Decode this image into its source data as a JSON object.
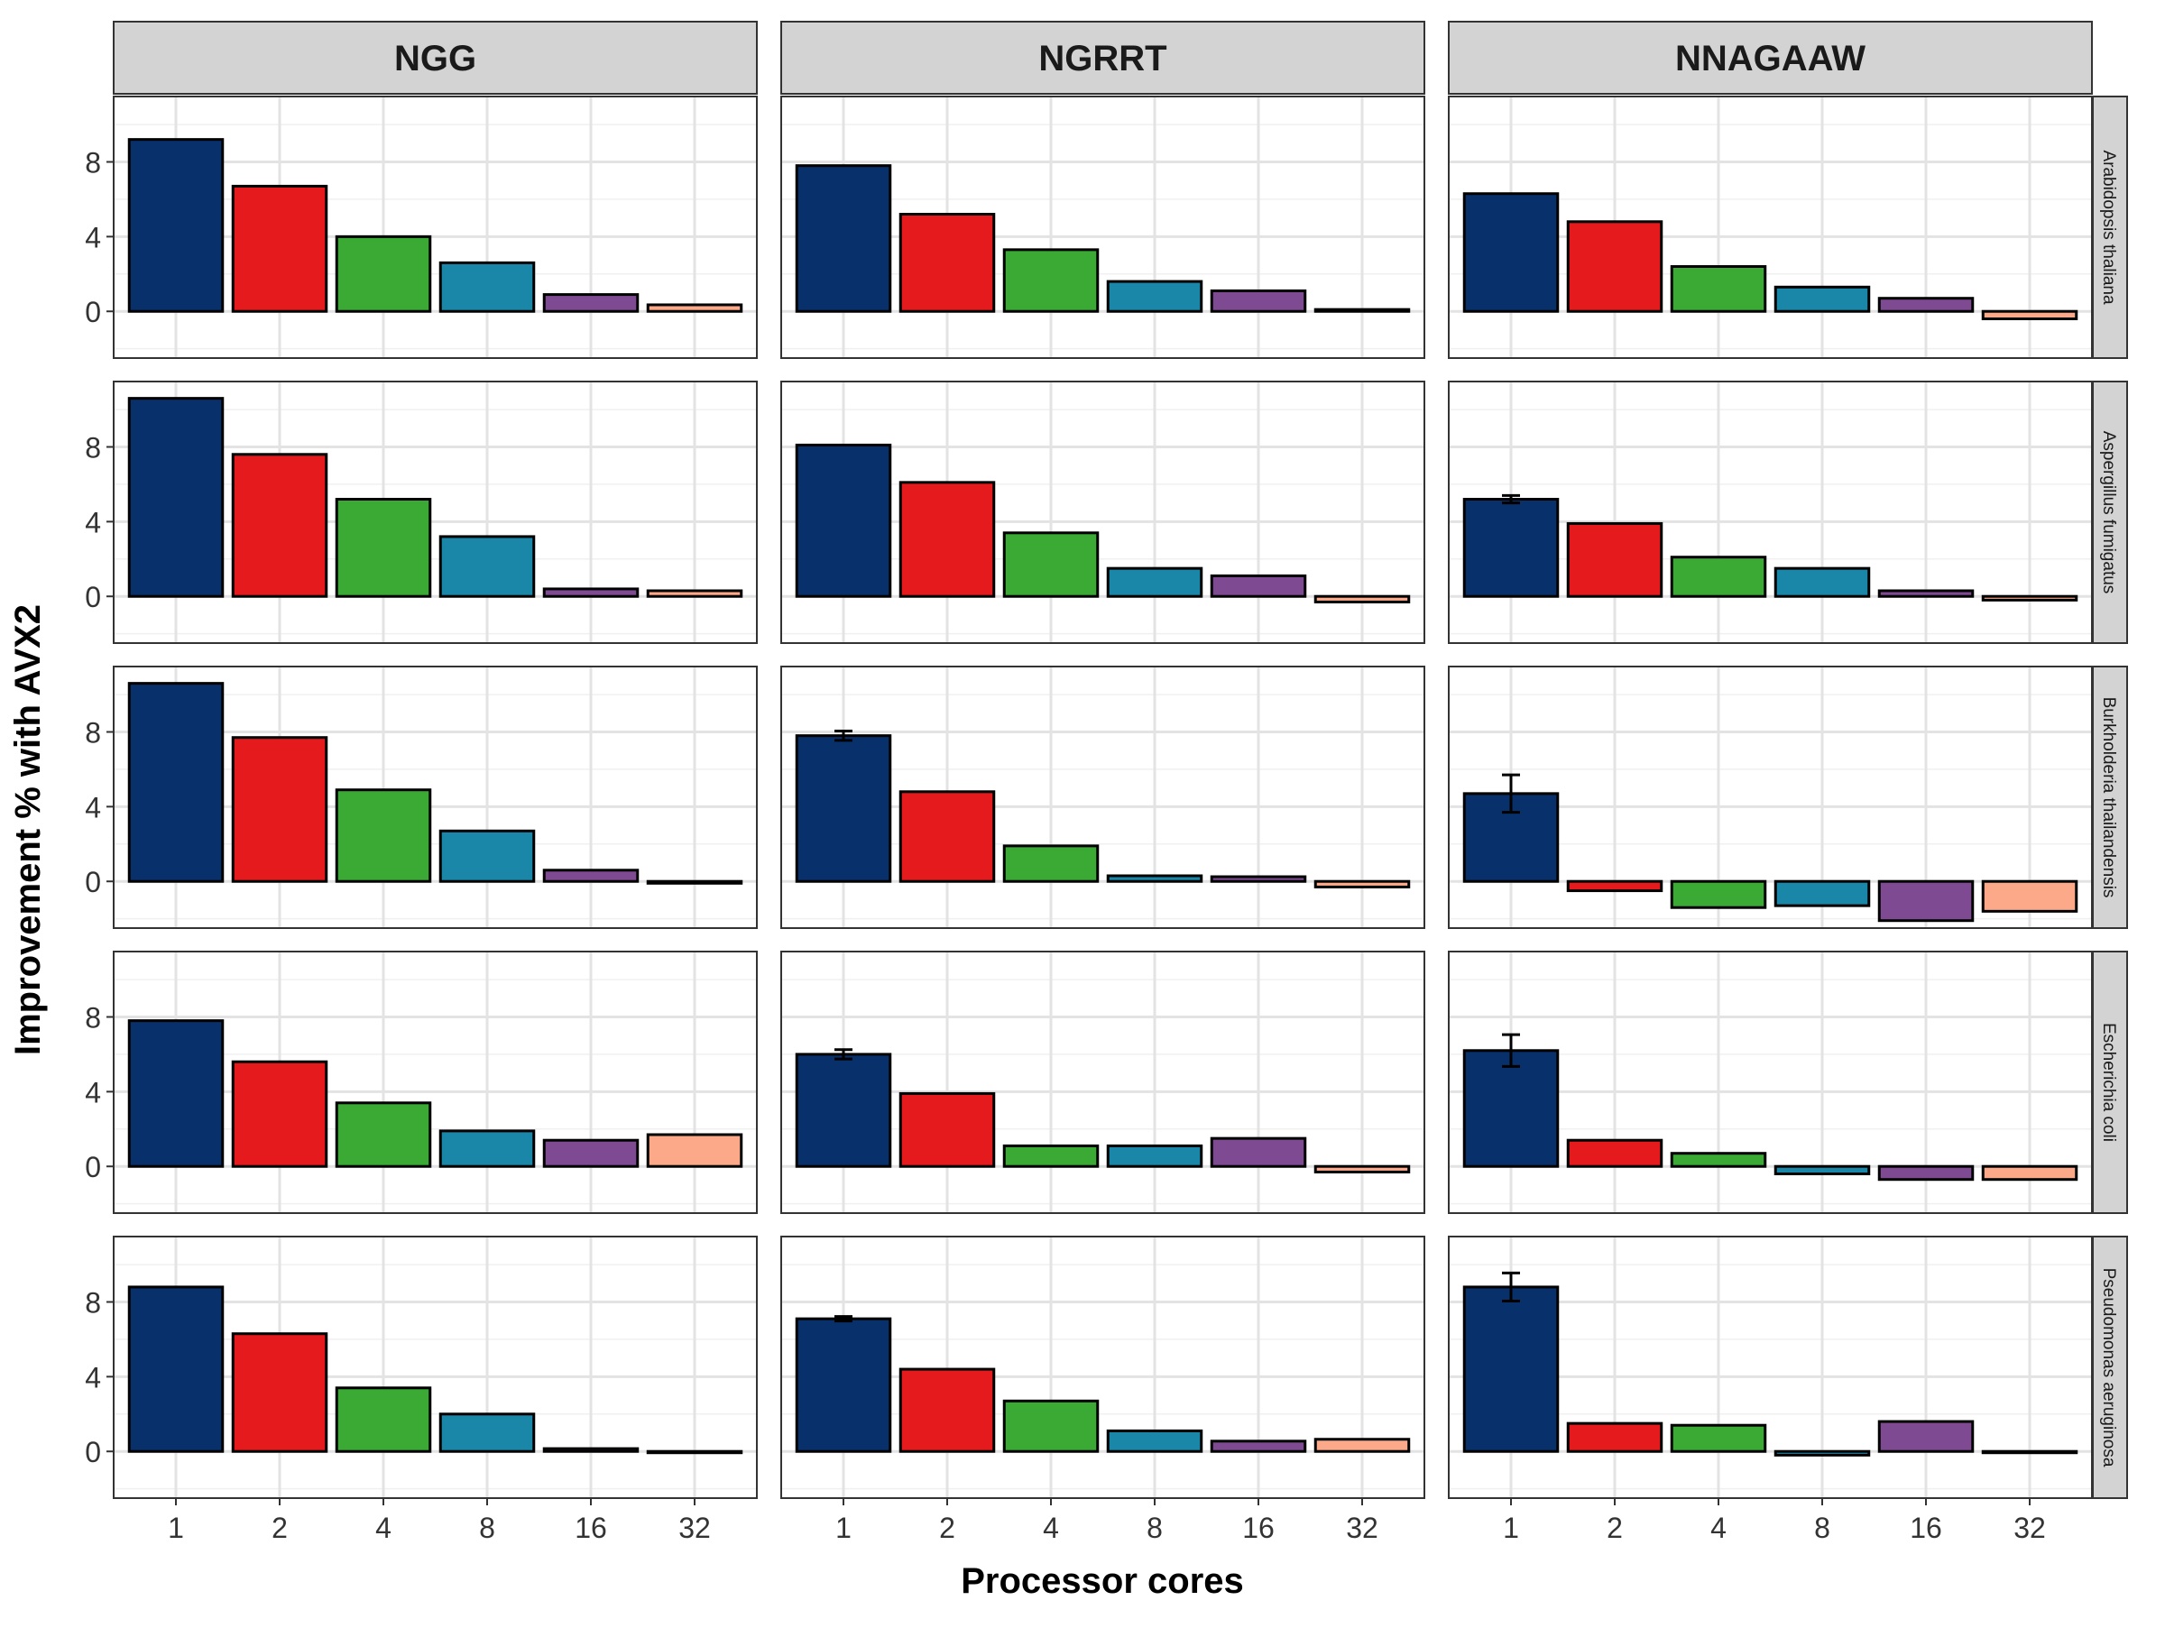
{
  "chart_data": {
    "type": "bar",
    "layout": "facet-grid",
    "xlabel": "Processor cores",
    "ylabel": "Improvement % with AVX2",
    "categories": [
      "1",
      "2",
      "4",
      "8",
      "16",
      "32"
    ],
    "yticks": [
      0,
      4,
      8
    ],
    "ylim": [
      -2.5,
      11.5
    ],
    "grid": true,
    "columns": [
      "NGG",
      "NGRRT",
      "NNAGAAW"
    ],
    "rows": [
      "Arabidopsis thaliana",
      "Aspergillus fumigatus",
      "Burkholderia thailandensis",
      "Escherichia coli",
      "Pseudomonas aeruginosa"
    ],
    "bar_colors": [
      "#08306B",
      "#E41A1C",
      "#3AAA35",
      "#1A86A8",
      "#7E4A91",
      "#FCA98A"
    ],
    "panels": [
      {
        "row": "Arabidopsis thaliana",
        "column": "NGG",
        "values": [
          9.2,
          6.7,
          4.0,
          2.6,
          0.9,
          0.35
        ],
        "errors": [
          0,
          0,
          0,
          0,
          0,
          0
        ]
      },
      {
        "row": "Arabidopsis thaliana",
        "column": "NGRRT",
        "values": [
          7.8,
          5.2,
          3.3,
          1.6,
          1.1,
          0.1
        ],
        "errors": [
          0,
          0,
          0,
          0,
          0,
          0
        ]
      },
      {
        "row": "Arabidopsis thaliana",
        "column": "NNAGAAW",
        "values": [
          6.3,
          4.8,
          2.4,
          1.3,
          0.7,
          -0.4
        ],
        "errors": [
          0,
          0,
          0,
          0,
          0,
          0
        ]
      },
      {
        "row": "Aspergillus fumigatus",
        "column": "NGG",
        "values": [
          10.6,
          7.6,
          5.2,
          3.2,
          0.4,
          0.3
        ],
        "errors": [
          0,
          0,
          0,
          0,
          0,
          0
        ]
      },
      {
        "row": "Aspergillus fumigatus",
        "column": "NGRRT",
        "values": [
          8.1,
          6.1,
          3.4,
          1.5,
          1.1,
          -0.3
        ],
        "errors": [
          0,
          0,
          0,
          0,
          0,
          0
        ]
      },
      {
        "row": "Aspergillus fumigatus",
        "column": "NNAGAAW",
        "values": [
          5.2,
          3.9,
          2.1,
          1.5,
          0.3,
          -0.2
        ],
        "errors": [
          0.2,
          0,
          0,
          0,
          0,
          0
        ]
      },
      {
        "row": "Burkholderia thailandensis",
        "column": "NGG",
        "values": [
          10.6,
          7.7,
          4.9,
          2.7,
          0.6,
          -0.1
        ],
        "errors": [
          0,
          0,
          0,
          0,
          0,
          0
        ]
      },
      {
        "row": "Burkholderia thailandensis",
        "column": "NGRRT",
        "values": [
          7.8,
          4.8,
          1.9,
          0.3,
          0.25,
          -0.3
        ],
        "errors": [
          0.25,
          0,
          0,
          0,
          0,
          0
        ]
      },
      {
        "row": "Burkholderia thailandensis",
        "column": "NNAGAAW",
        "values": [
          4.7,
          -0.5,
          -1.4,
          -1.3,
          -2.1,
          -1.6
        ],
        "errors": [
          1.0,
          0,
          0,
          0,
          0,
          0
        ]
      },
      {
        "row": "Escherichia coli",
        "column": "NGG",
        "values": [
          7.8,
          5.6,
          3.4,
          1.9,
          1.4,
          1.7
        ],
        "errors": [
          0,
          0,
          0,
          0,
          0,
          0
        ]
      },
      {
        "row": "Escherichia coli",
        "column": "NGRRT",
        "values": [
          6.0,
          3.9,
          1.1,
          1.1,
          1.5,
          -0.3
        ],
        "errors": [
          0.25,
          0,
          0,
          0,
          0,
          0
        ]
      },
      {
        "row": "Escherichia coli",
        "column": "NNAGAAW",
        "values": [
          6.2,
          1.4,
          0.7,
          -0.4,
          -0.7,
          -0.7
        ],
        "errors": [
          0.85,
          0,
          0,
          0,
          0,
          0
        ]
      },
      {
        "row": "Pseudomonas aeruginosa",
        "column": "NGG",
        "values": [
          8.8,
          6.3,
          3.4,
          2.0,
          0.15,
          -0.05
        ],
        "errors": [
          0,
          0,
          0,
          0,
          0,
          0
        ]
      },
      {
        "row": "Pseudomonas aeruginosa",
        "column": "NGRRT",
        "values": [
          7.1,
          4.4,
          2.7,
          1.1,
          0.55,
          0.65
        ],
        "errors": [
          0.12,
          0,
          0,
          0,
          0,
          0
        ]
      },
      {
        "row": "Pseudomonas aeruginosa",
        "column": "NNAGAAW",
        "values": [
          8.8,
          1.5,
          1.4,
          -0.2,
          1.6,
          -0.05
        ],
        "errors": [
          0.75,
          0,
          0,
          0,
          0,
          0
        ]
      }
    ]
  }
}
